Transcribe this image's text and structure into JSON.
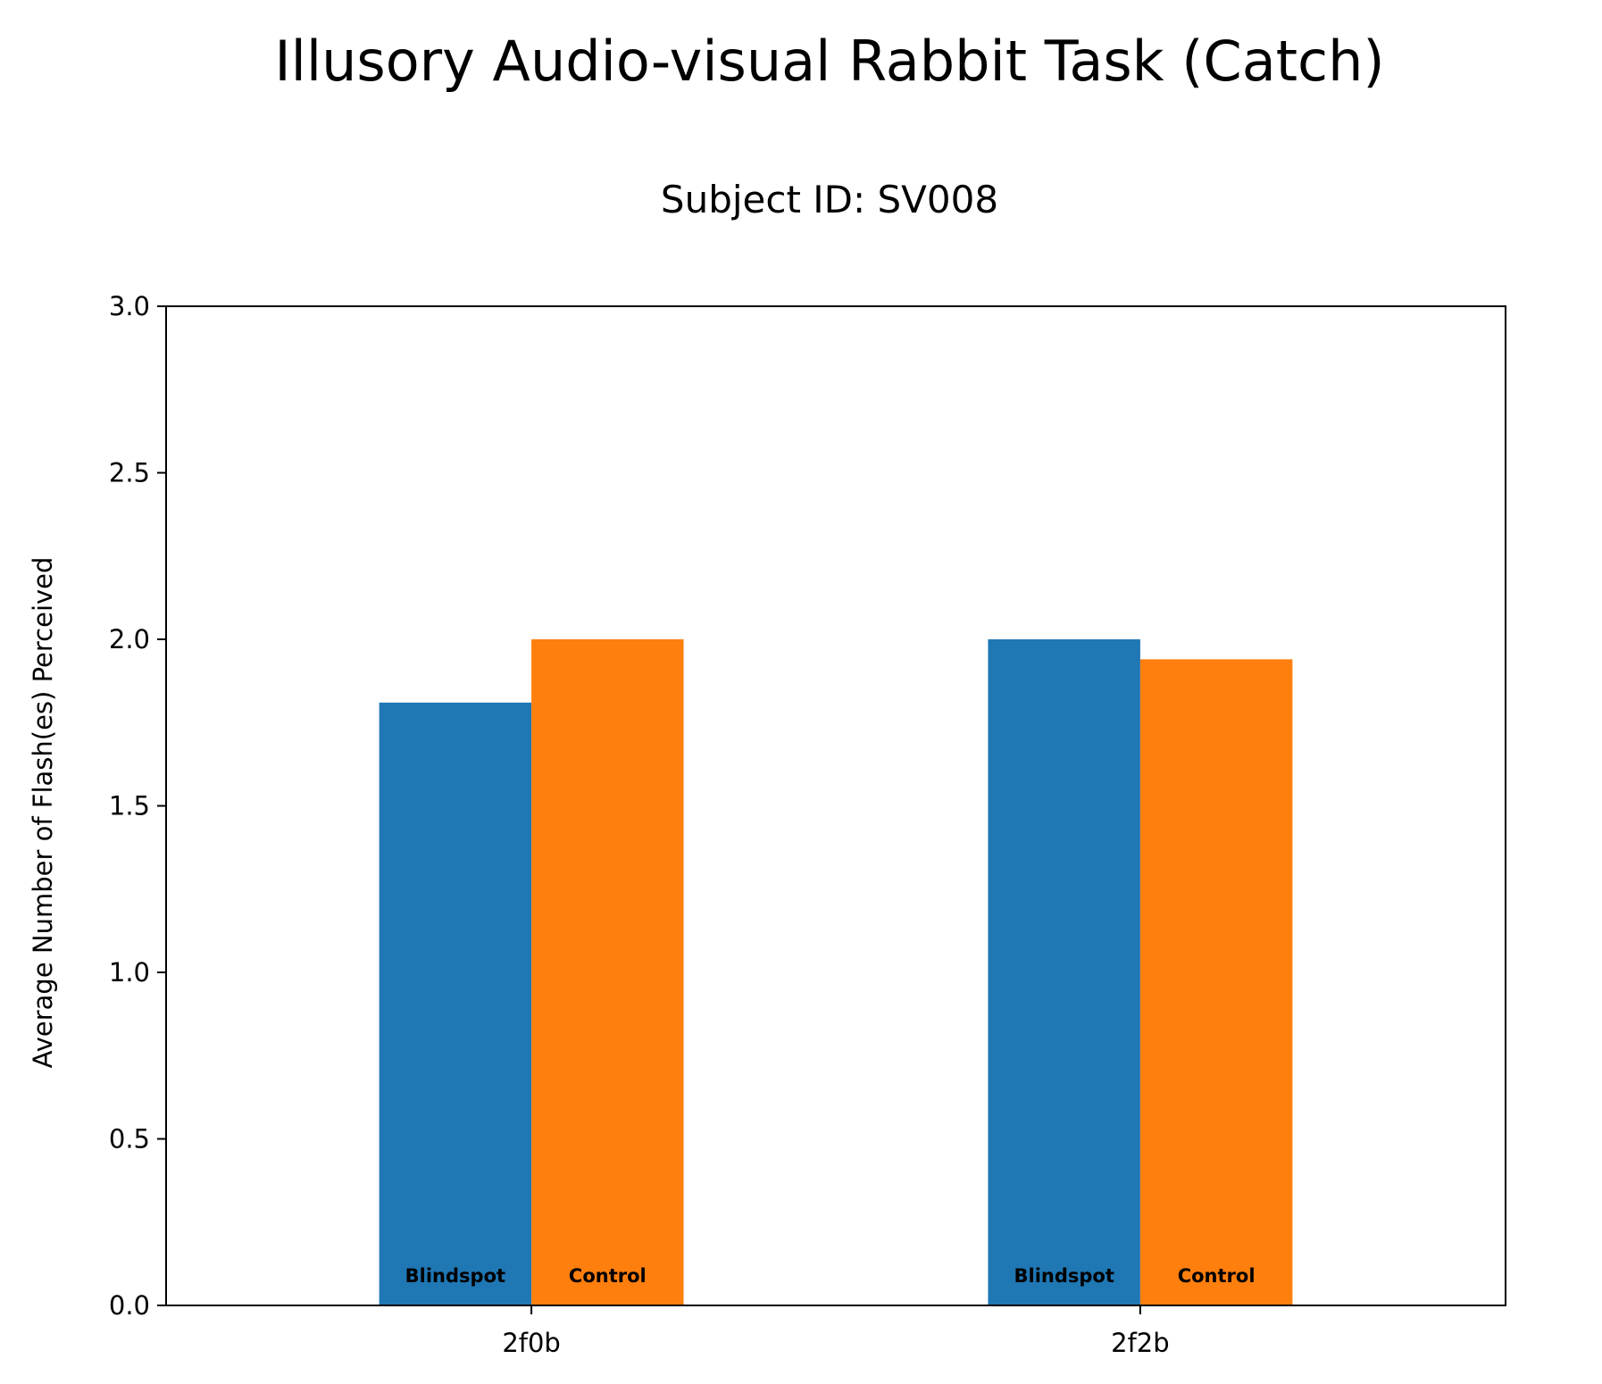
{
  "chart_data": {
    "type": "bar",
    "title": "Illusory Audio-visual Rabbit Task (Catch)",
    "subtitle": "Subject ID: SV008",
    "xlabel": "",
    "ylabel": "Average Number of Flash(es) Perceived",
    "categories": [
      "2f0b",
      "2f2b"
    ],
    "series": [
      {
        "name": "Blindspot",
        "color": "#1f77b4",
        "values": [
          1.81,
          2.0
        ]
      },
      {
        "name": "Control",
        "color": "#ff7f0e",
        "values": [
          2.0,
          1.94
        ]
      }
    ],
    "ylim": [
      0,
      3
    ],
    "yticks": [
      "0.0",
      "0.5",
      "1.0",
      "1.5",
      "2.0",
      "2.5",
      "3.0"
    ],
    "grid": false,
    "legend": "none"
  }
}
